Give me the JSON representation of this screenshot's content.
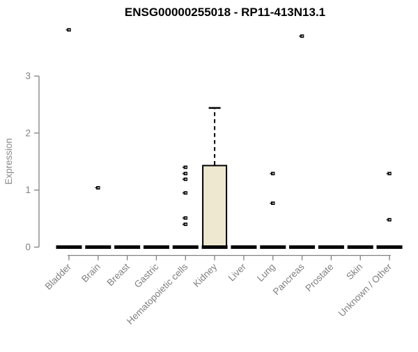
{
  "chart_data": {
    "type": "boxplot",
    "title": "ENSG00000255018 - RP11-413N13.1",
    "ylabel": "Expression",
    "xlabel": "",
    "ylim": [
      0,
      3
    ],
    "yticks": [
      0,
      1,
      2,
      3
    ],
    "grid": false,
    "legend": false,
    "categories": [
      "Bladder",
      "Brain",
      "Breast",
      "Gastric",
      "Hematopoietic cells",
      "Kidney",
      "Liver",
      "Lung",
      "Pancreas",
      "Prostate",
      "Skin",
      "Unknown / Other"
    ],
    "boxes": [
      {
        "category": "Bladder",
        "whisker_low": 0,
        "q1": 0,
        "median": 0,
        "q3": 0,
        "whisker_high": 0,
        "outliers": [
          3.81
        ]
      },
      {
        "category": "Brain",
        "whisker_low": 0,
        "q1": 0,
        "median": 0,
        "q3": 0,
        "whisker_high": 0,
        "outliers": [
          1.04
        ]
      },
      {
        "category": "Breast",
        "whisker_low": 0,
        "q1": 0,
        "median": 0,
        "q3": 0,
        "whisker_high": 0,
        "outliers": []
      },
      {
        "category": "Gastric",
        "whisker_low": 0,
        "q1": 0,
        "median": 0,
        "q3": 0,
        "whisker_high": 0,
        "outliers": []
      },
      {
        "category": "Hematopoietic cells",
        "whisker_low": 0,
        "q1": 0,
        "median": 0,
        "q3": 0,
        "whisker_high": 0,
        "outliers": [
          1.4,
          1.29,
          1.19,
          0.95,
          0.51,
          0.4
        ]
      },
      {
        "category": "Kidney",
        "whisker_low": 0,
        "q1": 0,
        "median": 0,
        "q3": 1.43,
        "whisker_high": 2.44,
        "outliers": []
      },
      {
        "category": "Liver",
        "whisker_low": 0,
        "q1": 0,
        "median": 0,
        "q3": 0,
        "whisker_high": 0,
        "outliers": []
      },
      {
        "category": "Lung",
        "whisker_low": 0,
        "q1": 0,
        "median": 0,
        "q3": 0,
        "whisker_high": 0,
        "outliers": [
          1.29,
          0.77
        ]
      },
      {
        "category": "Pancreas",
        "whisker_low": 0,
        "q1": 0,
        "median": 0,
        "q3": 0,
        "whisker_high": 0,
        "outliers": [
          3.7
        ]
      },
      {
        "category": "Prostate",
        "whisker_low": 0,
        "q1": 0,
        "median": 0,
        "q3": 0,
        "whisker_high": 0,
        "outliers": []
      },
      {
        "category": "Skin",
        "whisker_low": 0,
        "q1": 0,
        "median": 0,
        "q3": 0,
        "whisker_high": 0,
        "outliers": []
      },
      {
        "category": "Unknown / Other",
        "whisker_low": 0,
        "q1": 0,
        "median": 0,
        "q3": 0,
        "whisker_high": 0,
        "outliers": [
          1.29,
          0.48
        ]
      }
    ],
    "colors": {
      "background": "#ffffff",
      "title": "#000000",
      "axis": "#808080",
      "tick_label": "#808080",
      "axis_title": "#8a8a8a",
      "box_fill": "#ede8cf",
      "box_stroke": "#000000",
      "median": "#000000",
      "outlier": "#000000"
    }
  }
}
